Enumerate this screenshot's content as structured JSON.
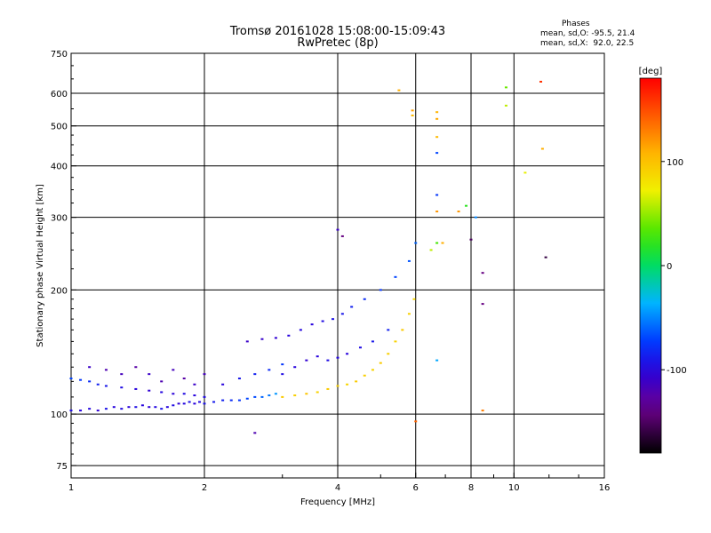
{
  "title_line1": "Tromsø 20161028 15:08:00-15:09:43",
  "title_line2": "RwPretec (8p)",
  "phase_box": {
    "heading": "Phases",
    "line1": "mean, sd,O: -95.5, 21.4",
    "line2": "mean, sd,X:  92.0, 22.5"
  },
  "colorbar": {
    "unit_label": "[deg]",
    "range": [
      -180,
      180
    ],
    "ticks": [
      100,
      0,
      -100
    ],
    "tick_labels": [
      "100",
      "0",
      "-100"
    ]
  },
  "chart_data": {
    "type": "scatter",
    "title": "Tromsø 20161028 15:08:00-15:09:43",
    "subtitle": "RwPretec (8p)",
    "xlabel": "Frequency [MHz]",
    "ylabel": "Stationary phase Virtual Height [km]",
    "x_scale": "log",
    "y_scale": "log",
    "xlim": [
      1,
      16
    ],
    "ylim": [
      70,
      750
    ],
    "x_ticks": [
      1,
      2,
      4,
      6,
      8,
      10,
      16
    ],
    "x_tick_labels": [
      "1",
      "2",
      "4",
      "6",
      "8",
      "10",
      "16"
    ],
    "y_ticks": [
      75,
      100,
      200,
      300,
      400,
      500,
      600,
      750
    ],
    "y_tick_labels": [
      "75",
      "100",
      "200",
      "300",
      "400",
      "500",
      "600",
      "750"
    ],
    "grid": true,
    "color_by": "phase [deg]",
    "series": [
      {
        "trace": "O-mode lower trace",
        "points": [
          [
            1.0,
            102,
            -95
          ],
          [
            1.05,
            102,
            -100
          ],
          [
            1.1,
            103,
            -98
          ],
          [
            1.15,
            102,
            -105
          ],
          [
            1.2,
            103,
            -92
          ],
          [
            1.25,
            104,
            -100
          ],
          [
            1.3,
            103,
            -96
          ],
          [
            1.35,
            104,
            -102
          ],
          [
            1.4,
            104,
            -94
          ],
          [
            1.45,
            105,
            -99
          ],
          [
            1.5,
            104,
            -103
          ],
          [
            1.55,
            104,
            -97
          ],
          [
            1.6,
            103,
            -91
          ],
          [
            1.65,
            104,
            -100
          ],
          [
            1.7,
            105,
            -95
          ],
          [
            1.75,
            106,
            -104
          ],
          [
            1.8,
            106,
            -98
          ],
          [
            1.85,
            107,
            -93
          ],
          [
            1.9,
            106,
            -101
          ],
          [
            1.95,
            107,
            -96
          ],
          [
            2.0,
            106,
            -92
          ],
          [
            2.1,
            107,
            -88
          ],
          [
            2.2,
            108,
            -85
          ],
          [
            2.3,
            108,
            -80
          ],
          [
            2.4,
            108,
            -76
          ],
          [
            2.5,
            109,
            -70
          ],
          [
            2.6,
            110,
            -68
          ],
          [
            2.7,
            110,
            -60
          ],
          [
            2.8,
            111,
            -55
          ],
          [
            2.9,
            112,
            -45
          ]
        ]
      },
      {
        "trace": "O-mode trace near 120 km",
        "points": [
          [
            1.0,
            122,
            -70
          ],
          [
            1.05,
            121,
            -75
          ],
          [
            1.1,
            120,
            -80
          ],
          [
            1.15,
            118,
            -85
          ],
          [
            1.2,
            117,
            -90
          ],
          [
            1.3,
            116,
            -95
          ],
          [
            1.4,
            115,
            -100
          ],
          [
            1.5,
            114,
            -105
          ],
          [
            1.6,
            113,
            -98
          ],
          [
            1.7,
            112,
            -102
          ],
          [
            1.8,
            112,
            -96
          ],
          [
            1.9,
            111,
            -100
          ],
          [
            2.0,
            110,
            -95
          ]
        ]
      },
      {
        "trace": "scattered O-mode echoes 110-140 km",
        "points": [
          [
            1.1,
            130,
            -110
          ],
          [
            1.2,
            128,
            -120
          ],
          [
            1.3,
            125,
            -115
          ],
          [
            1.4,
            130,
            -125
          ],
          [
            1.5,
            125,
            -110
          ],
          [
            1.6,
            120,
            -120
          ],
          [
            1.7,
            128,
            -115
          ],
          [
            1.8,
            122,
            -125
          ],
          [
            1.9,
            118,
            -110
          ],
          [
            2.0,
            125,
            -115
          ],
          [
            2.2,
            118,
            -100
          ],
          [
            2.4,
            122,
            -90
          ],
          [
            2.6,
            125,
            -85
          ],
          [
            2.8,
            128,
            -80
          ],
          [
            3.0,
            132,
            -75
          ]
        ]
      },
      {
        "trace": "O-mode upper trace near 150-170 km",
        "points": [
          [
            2.5,
            150,
            -110
          ],
          [
            2.7,
            152,
            -108
          ],
          [
            2.9,
            153,
            -105
          ],
          [
            3.1,
            155,
            -100
          ],
          [
            3.3,
            160,
            -98
          ],
          [
            3.5,
            165,
            -100
          ],
          [
            3.7,
            168,
            -95
          ],
          [
            3.9,
            170,
            -92
          ],
          [
            4.1,
            175,
            -90
          ],
          [
            4.3,
            182,
            -85
          ],
          [
            4.6,
            190,
            -80
          ],
          [
            5.0,
            200,
            -75
          ],
          [
            5.4,
            215,
            -70
          ],
          [
            5.8,
            235,
            -65
          ],
          [
            6.0,
            260,
            -60
          ]
        ]
      },
      {
        "trace": "O-mode trace 125-145 km",
        "points": [
          [
            3.0,
            125,
            -95
          ],
          [
            3.2,
            130,
            -100
          ],
          [
            3.4,
            135,
            -105
          ],
          [
            3.6,
            138,
            -100
          ],
          [
            3.8,
            135,
            -95
          ],
          [
            4.0,
            137,
            -98
          ],
          [
            4.2,
            140,
            -100
          ],
          [
            4.5,
            145,
            -95
          ],
          [
            4.8,
            150,
            -90
          ],
          [
            5.2,
            160,
            -85
          ]
        ]
      },
      {
        "trace": "X-mode trace",
        "points": [
          [
            3.0,
            110,
            95
          ],
          [
            3.2,
            111,
            92
          ],
          [
            3.4,
            112,
            98
          ],
          [
            3.6,
            113,
            90
          ],
          [
            3.8,
            115,
            95
          ],
          [
            4.0,
            117,
            92
          ],
          [
            4.2,
            118,
            88
          ],
          [
            4.4,
            120,
            95
          ],
          [
            4.6,
            124,
            92
          ],
          [
            4.8,
            128,
            90
          ],
          [
            5.0,
            133,
            95
          ],
          [
            5.2,
            140,
            92
          ],
          [
            5.4,
            150,
            90
          ],
          [
            5.6,
            160,
            95
          ],
          [
            5.8,
            175,
            92
          ],
          [
            5.95,
            190,
            88
          ]
        ]
      },
      {
        "trace": "isolated echoes",
        "points": [
          [
            5.5,
            610,
            110
          ],
          [
            5.9,
            530,
            105
          ],
          [
            5.9,
            545,
            115
          ],
          [
            6.7,
            520,
            112
          ],
          [
            6.7,
            540,
            108
          ],
          [
            6.7,
            470,
            105
          ],
          [
            6.7,
            430,
            -70
          ],
          [
            6.7,
            340,
            -75
          ],
          [
            6.7,
            310,
            120
          ],
          [
            6.7,
            260,
            30
          ],
          [
            6.5,
            250,
            60
          ],
          [
            6.9,
            260,
            110
          ],
          [
            7.5,
            310,
            120
          ],
          [
            7.8,
            320,
            20
          ],
          [
            8.0,
            265,
            -150
          ],
          [
            8.5,
            220,
            -140
          ],
          [
            8.5,
            185,
            -140
          ],
          [
            8.2,
            300,
            -50
          ],
          [
            9.6,
            620,
            40
          ],
          [
            9.6,
            560,
            60
          ],
          [
            11.5,
            640,
            160
          ],
          [
            11.6,
            440,
            110
          ],
          [
            10.6,
            385,
            70
          ],
          [
            11.8,
            240,
            -160
          ],
          [
            4.0,
            280,
            -110
          ],
          [
            4.1,
            270,
            -140
          ],
          [
            2.6,
            90,
            -120
          ],
          [
            6.0,
            96,
            140
          ],
          [
            8.5,
            102,
            130
          ],
          [
            6.7,
            135,
            -40
          ]
        ]
      }
    ]
  }
}
